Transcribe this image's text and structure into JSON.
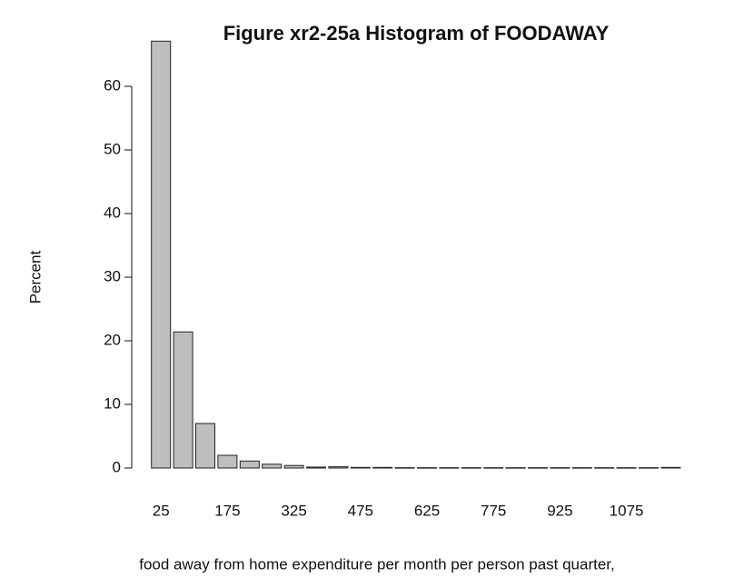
{
  "chart_data": {
    "type": "bar",
    "title": "Figure xr2-25a Histogram of FOODAWAY",
    "x_label": "food away from home expenditure per month per person past quarter,",
    "y_label": "Percent",
    "categories": [
      25,
      null,
      null,
      175,
      null,
      null,
      325,
      null,
      null,
      475,
      null,
      null,
      625,
      null,
      null,
      775,
      null,
      null,
      925,
      null,
      null,
      1075,
      null,
      null
    ],
    "values": [
      67.1,
      21.4,
      7.0,
      2.0,
      1.1,
      0.6,
      0.4,
      0.15,
      0.2,
      0.1,
      0.1,
      0.05,
      0.05,
      0.05,
      0.05,
      0.05,
      0.05,
      0.05,
      0.05,
      0.05,
      0.05,
      0.05,
      0.05,
      0.1
    ],
    "color": "#bebebe",
    "ylim": [
      0,
      70
    ],
    "yticks": [
      0,
      10,
      20,
      30,
      40,
      50,
      60
    ]
  }
}
